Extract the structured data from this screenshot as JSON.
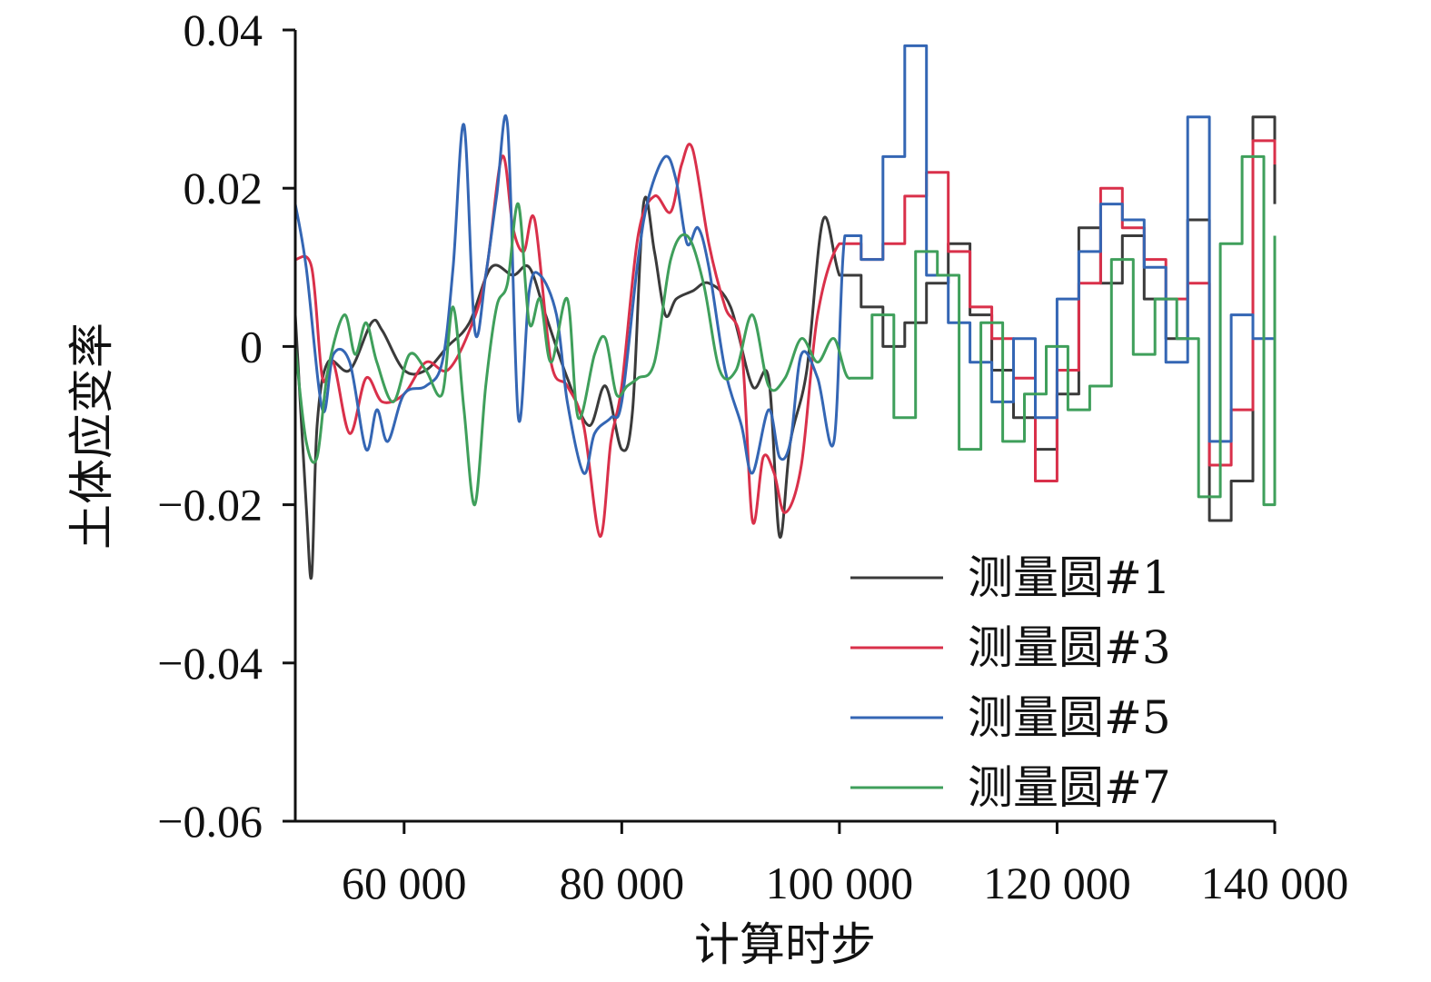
{
  "chart_data": {
    "type": "line",
    "title": "",
    "xlabel": "计算时步",
    "ylabel": "土体应变率",
    "xlim": [
      50000,
      140000
    ],
    "ylim": [
      -0.06,
      0.04
    ],
    "xticks": [
      60000,
      80000,
      100000,
      120000,
      140000
    ],
    "xtick_labels": [
      "60 000",
      "80 000",
      "100 000",
      "120 000",
      "140 000"
    ],
    "yticks": [
      0.04,
      0.02,
      0,
      -0.02,
      -0.04,
      -0.06
    ],
    "ytick_labels": [
      "0.04",
      "0.02",
      "0",
      "−0.02",
      "−0.04",
      "−0.06"
    ],
    "grid": false,
    "legend_position": "bottom-right",
    "series": [
      {
        "name": "测量圆#1",
        "color": "#3a3a3a",
        "style": "smooth-then-step",
        "x": [
          50000,
          51000,
          51500,
          52000,
          53000,
          55000,
          57000,
          58000,
          60000,
          62000,
          64000,
          66000,
          68000,
          70000,
          71500,
          73000,
          75000,
          77000,
          78500,
          80000,
          81000,
          82000,
          83000,
          84000,
          85000,
          86500,
          88000,
          90000,
          92000,
          93500,
          94500,
          95500,
          97000,
          98500,
          100000,
          102000,
          104000,
          106000,
          108000,
          110000,
          112000,
          114000,
          116000,
          118000,
          120000,
          122000,
          124000,
          126000,
          128000,
          130000,
          132000,
          134000,
          136000,
          138000,
          140000
        ],
        "y": [
          0.004,
          -0.02,
          -0.029,
          -0.01,
          -0.002,
          -0.003,
          0.003,
          0.002,
          -0.003,
          -0.003,
          0.0,
          0.003,
          0.01,
          0.009,
          0.01,
          0.004,
          -0.004,
          -0.01,
          -0.005,
          -0.013,
          -0.008,
          0.018,
          0.012,
          0.004,
          0.006,
          0.007,
          0.008,
          0.005,
          -0.005,
          -0.004,
          -0.024,
          -0.012,
          -0.003,
          0.016,
          0.009,
          0.005,
          0.0,
          0.003,
          0.008,
          0.013,
          0.004,
          -0.003,
          -0.009,
          -0.013,
          -0.006,
          0.015,
          0.008,
          0.014,
          0.006,
          0.001,
          0.016,
          -0.022,
          -0.017,
          0.029,
          0.018
        ]
      },
      {
        "name": "测量圆#3",
        "color": "#d9304a",
        "style": "smooth-then-step",
        "x": [
          50000,
          51500,
          52500,
          53500,
          55000,
          56500,
          58000,
          60000,
          62000,
          64000,
          66000,
          67500,
          69000,
          70000,
          71000,
          72000,
          73500,
          75000,
          76500,
          78000,
          79000,
          80000,
          81500,
          83000,
          84500,
          85500,
          86500,
          88000,
          89500,
          91000,
          92000,
          93000,
          94000,
          95000,
          96500,
          98000,
          100000,
          102000,
          104000,
          106000,
          108000,
          110000,
          112000,
          114000,
          116000,
          118000,
          120000,
          122000,
          124000,
          126000,
          128000,
          130000,
          132000,
          134000,
          136000,
          138000,
          140000
        ],
        "y": [
          0.011,
          0.01,
          -0.004,
          -0.002,
          -0.011,
          -0.004,
          -0.007,
          -0.006,
          -0.002,
          -0.003,
          0.002,
          0.009,
          0.024,
          0.015,
          0.012,
          0.016,
          -0.002,
          -0.005,
          -0.01,
          -0.024,
          -0.012,
          -0.005,
          0.014,
          0.019,
          0.017,
          0.023,
          0.025,
          0.013,
          0.005,
          0.0,
          -0.022,
          -0.014,
          -0.016,
          -0.021,
          -0.015,
          0.004,
          0.013,
          0.011,
          0.013,
          0.019,
          0.022,
          0.012,
          0.005,
          0.001,
          -0.004,
          -0.017,
          -0.003,
          0.008,
          0.02,
          0.015,
          0.011,
          0.006,
          0.008,
          -0.015,
          -0.008,
          0.026,
          0.023
        ]
      },
      {
        "name": "测量圆#5",
        "color": "#3466b4",
        "style": "smooth-then-step",
        "x": [
          50000,
          51000,
          52500,
          53500,
          55000,
          56500,
          57500,
          58500,
          60000,
          62000,
          63500,
          64500,
          65500,
          66500,
          67500,
          68500,
          69500,
          70500,
          71500,
          72500,
          74000,
          75000,
          76500,
          77500,
          79000,
          80000,
          81500,
          82500,
          84000,
          85000,
          86000,
          87000,
          88000,
          89500,
          91000,
          92000,
          93500,
          94500,
          95500,
          96500,
          98000,
          99500,
          100500,
          102000,
          104000,
          106000,
          108000,
          110000,
          112000,
          114000,
          116000,
          118000,
          120000,
          122000,
          124000,
          126000,
          128000,
          130000,
          132000,
          134000,
          136000,
          138000,
          140000
        ],
        "y": [
          0.018,
          0.01,
          -0.008,
          -0.001,
          -0.002,
          -0.013,
          -0.008,
          -0.012,
          -0.006,
          -0.005,
          -0.002,
          0.01,
          0.028,
          0.002,
          0.009,
          0.019,
          0.028,
          -0.009,
          0.007,
          0.009,
          0.004,
          -0.007,
          -0.016,
          -0.011,
          -0.009,
          -0.007,
          0.011,
          0.019,
          0.024,
          0.021,
          0.013,
          0.015,
          0.01,
          -0.003,
          -0.01,
          -0.016,
          -0.008,
          -0.014,
          -0.012,
          -0.001,
          -0.004,
          -0.012,
          0.014,
          0.011,
          0.024,
          0.038,
          0.009,
          0.003,
          -0.002,
          -0.007,
          0.001,
          -0.009,
          0.006,
          0.012,
          0.018,
          0.016,
          0.01,
          -0.002,
          0.029,
          -0.012,
          0.004,
          0.001,
          -0.009
        ]
      },
      {
        "name": "测量圆#7",
        "color": "#3f9f5b",
        "style": "smooth-then-step",
        "x": [
          50000,
          51000,
          52000,
          53000,
          54500,
          55500,
          56500,
          57500,
          59000,
          60500,
          62000,
          63500,
          64500,
          65500,
          66500,
          67500,
          68500,
          69500,
          70500,
          71500,
          72500,
          73500,
          75000,
          76000,
          77500,
          78500,
          79500,
          80500,
          81500,
          83000,
          84500,
          86000,
          87500,
          89000,
          90500,
          92000,
          93500,
          95000,
          96500,
          98000,
          99500,
          101000,
          103000,
          105000,
          107000,
          109000,
          111000,
          113000,
          115000,
          117000,
          119000,
          121000,
          123000,
          125000,
          127000,
          129000,
          131000,
          133000,
          135000,
          137000,
          139000,
          140000
        ],
        "y": [
          0.0,
          -0.012,
          -0.014,
          -0.003,
          0.004,
          -0.001,
          0.003,
          -0.002,
          -0.007,
          -0.001,
          -0.003,
          -0.006,
          0.005,
          -0.008,
          -0.02,
          -0.005,
          0.005,
          0.008,
          0.018,
          0.003,
          0.006,
          -0.002,
          0.006,
          -0.009,
          -0.001,
          0.001,
          -0.006,
          -0.005,
          -0.004,
          -0.002,
          0.011,
          0.014,
          0.008,
          -0.003,
          -0.003,
          0.004,
          -0.005,
          -0.004,
          0.001,
          -0.002,
          0.001,
          -0.004,
          0.004,
          -0.009,
          0.012,
          0.009,
          -0.013,
          0.003,
          -0.012,
          -0.006,
          0.0,
          -0.008,
          -0.005,
          0.011,
          -0.001,
          0.006,
          0.001,
          -0.019,
          0.013,
          0.024,
          -0.02,
          0.014
        ]
      }
    ]
  }
}
